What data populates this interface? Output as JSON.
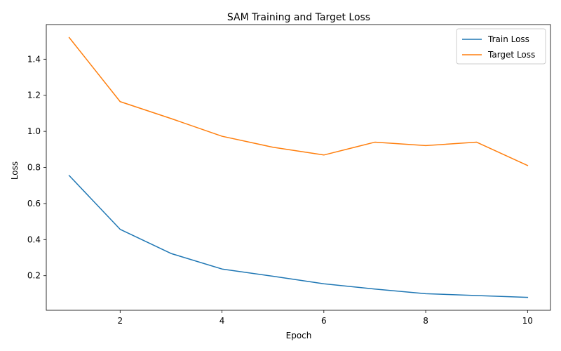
{
  "chart_data": {
    "type": "line",
    "title": "SAM Training and Target Loss",
    "xlabel": "Epoch",
    "ylabel": "Loss",
    "x": [
      1,
      2,
      3,
      4,
      5,
      6,
      7,
      8,
      9,
      10
    ],
    "xlim": [
      0.55,
      10.45
    ],
    "ylim": [
      0.0082,
      1.592
    ],
    "xticks": [
      2,
      4,
      6,
      8,
      10
    ],
    "yticks": [
      0.2,
      0.4,
      0.6,
      0.8,
      1.0,
      1.2,
      1.4
    ],
    "xtick_labels": [
      "2",
      "4",
      "6",
      "8",
      "10"
    ],
    "ytick_labels": [
      "0.2",
      "0.4",
      "0.6",
      "0.8",
      "1.0",
      "1.2",
      "1.4"
    ],
    "grid": false,
    "legend_position": "top-right",
    "series": [
      {
        "name": "Train Loss",
        "color": "#1f77b4",
        "values": [
          0.755,
          0.457,
          0.323,
          0.237,
          0.197,
          0.155,
          0.126,
          0.1,
          0.09,
          0.08
        ]
      },
      {
        "name": "Target Loss",
        "color": "#ff7f0e",
        "values": [
          1.52,
          1.165,
          1.071,
          0.973,
          0.912,
          0.869,
          0.94,
          0.921,
          0.94,
          0.811
        ]
      }
    ]
  }
}
